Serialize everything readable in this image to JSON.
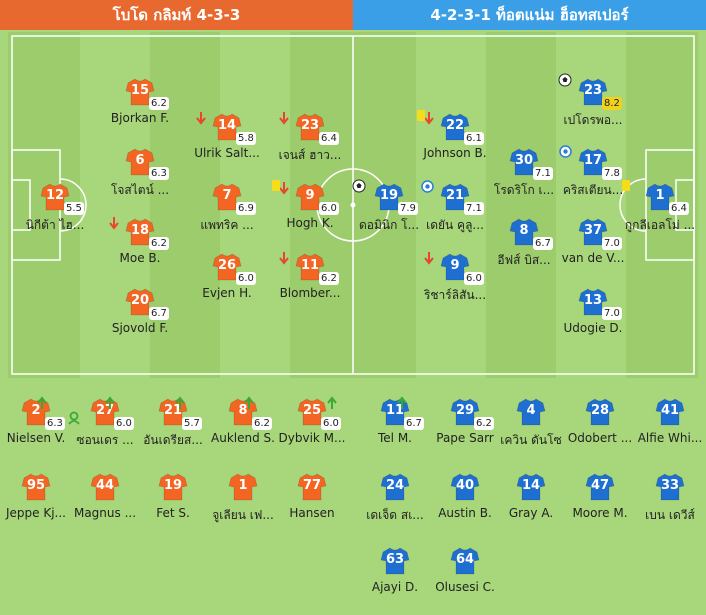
{
  "header": {
    "home_title": "โบโด กลิมท์ 4-3-3",
    "away_title": "4-2-3-1 ท็อตแน่ม ฮ็อทสเปอร์"
  },
  "colors": {
    "home_shirt": "#f26522",
    "away_shirt": "#1e6fd0",
    "home_header": "#e8692f",
    "away_header": "#3a9fe6",
    "pitch": "#a8d67a"
  },
  "home_lineup": [
    {
      "number": "12",
      "name": "นิกีต้า ไฮ...",
      "rating": "5.5"
    },
    {
      "number": "15",
      "name": "Bjorkan F.",
      "rating": "6.2"
    },
    {
      "number": "6",
      "name": "โจสไตน์ ...",
      "rating": "6.3"
    },
    {
      "number": "18",
      "name": "Moe B.",
      "rating": "6.2",
      "subbed_off": true
    },
    {
      "number": "20",
      "name": "Sjovold F.",
      "rating": "6.7"
    },
    {
      "number": "14",
      "name": "Ulrik Salt...",
      "rating": "5.8",
      "subbed_off": true
    },
    {
      "number": "7",
      "name": "แพทริค ...",
      "rating": "6.9"
    },
    {
      "number": "26",
      "name": "Evjen H.",
      "rating": "6.0"
    },
    {
      "number": "23",
      "name": "เจนส์ ฮาว...",
      "rating": "6.4",
      "subbed_off": true
    },
    {
      "number": "9",
      "name": "Hogh K.",
      "rating": "6.0",
      "subbed_off": true,
      "yellow_card": true
    },
    {
      "number": "11",
      "name": "Blomber...",
      "rating": "6.2",
      "subbed_off": true
    }
  ],
  "away_lineup": [
    {
      "number": "19",
      "name": "ดอมินิก โ...",
      "rating": "7.9",
      "goal": true
    },
    {
      "number": "22",
      "name": "Johnson B.",
      "rating": "6.1",
      "subbed_off": true,
      "yellow_card": true
    },
    {
      "number": "21",
      "name": "เดยัน คูลู...",
      "rating": "7.1",
      "badge": true
    },
    {
      "number": "9",
      "name": "ริชาร์ลิสัน...",
      "rating": "6.0",
      "subbed_off": true
    },
    {
      "number": "30",
      "name": "โรดริโก เ...",
      "rating": "7.1"
    },
    {
      "number": "8",
      "name": "อีฟส์ บิส...",
      "rating": "6.7"
    },
    {
      "number": "23",
      "name": "เปโดรพอ...",
      "rating": "8.2",
      "goal": true,
      "gold": true
    },
    {
      "number": "17",
      "name": "คริสเตียน...",
      "rating": "7.8",
      "badge_top": true
    },
    {
      "number": "37",
      "name": "van de V...",
      "rating": "7.0"
    },
    {
      "number": "13",
      "name": "Udogie D.",
      "rating": "7.0"
    },
    {
      "number": "1",
      "name": "กูกลีเอลโม่ ...",
      "rating": "6.4",
      "yellow_card": true
    }
  ],
  "home_bench": [
    {
      "number": "2",
      "name": "Nielsen V.",
      "rating": "6.3",
      "subbed_on": true
    },
    {
      "number": "27",
      "name": "ซอนเดร ...",
      "rating": "6.0",
      "subbed_on": true,
      "og_icon": true
    },
    {
      "number": "21",
      "name": "อันเดรียส...",
      "rating": "5.7",
      "subbed_on": true
    },
    {
      "number": "8",
      "name": "Auklend S.",
      "rating": "6.2",
      "subbed_on": true
    },
    {
      "number": "25",
      "name": "Dybvik M...",
      "rating": "6.0",
      "subbed_on": true
    },
    {
      "number": "95",
      "name": "Jeppe Kj..."
    },
    {
      "number": "44",
      "name": "Magnus ..."
    },
    {
      "number": "19",
      "name": "Fet S."
    },
    {
      "number": "1",
      "name": "จูเลียน เฟ..."
    },
    {
      "number": "77",
      "name": "Hansen"
    }
  ],
  "away_bench": [
    {
      "number": "11",
      "name": "Tel M.",
      "rating": "6.7",
      "subbed_on": true
    },
    {
      "number": "29",
      "name": "Pape Sarr",
      "rating": "6.2",
      "subbed_on": true
    },
    {
      "number": "4",
      "name": "เควิน ดันโซ"
    },
    {
      "number": "28",
      "name": "Odobert ..."
    },
    {
      "number": "41",
      "name": "Alfie Whi..."
    },
    {
      "number": "24",
      "name": "เดเจ็ด สเ..."
    },
    {
      "number": "40",
      "name": "Austin B."
    },
    {
      "number": "14",
      "name": "Gray A."
    },
    {
      "number": "47",
      "name": "Moore M."
    },
    {
      "number": "33",
      "name": "เบน เดวีส์"
    },
    {
      "number": "63",
      "name": "Ajayi D."
    },
    {
      "number": "64",
      "name": "Olusesi C."
    }
  ]
}
